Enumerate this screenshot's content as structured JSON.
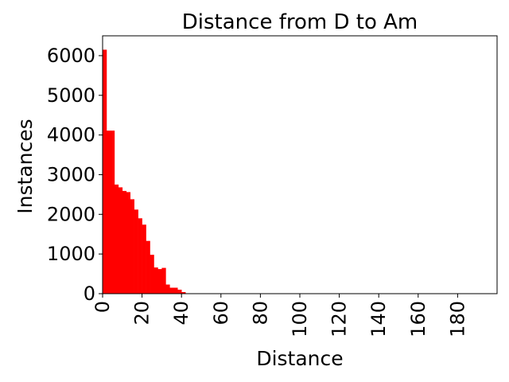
{
  "chart_data": {
    "type": "bar",
    "title": "Distance from D to Am",
    "xlabel": "Distance",
    "ylabel": "Instances",
    "xlim": [
      0,
      200
    ],
    "ylim": [
      0,
      6500
    ],
    "bar_color": "#ff0000",
    "grid": false,
    "x_ticks": [
      0,
      20,
      40,
      60,
      80,
      100,
      120,
      140,
      160,
      180
    ],
    "y_ticks": [
      0,
      1000,
      2000,
      3000,
      4000,
      5000,
      6000
    ],
    "bins": [
      {
        "x0": 0,
        "x1": 2,
        "value": 6150
      },
      {
        "x0": 2,
        "x1": 4,
        "value": 4110
      },
      {
        "x0": 4,
        "x1": 6,
        "value": 4110
      },
      {
        "x0": 6,
        "x1": 8,
        "value": 2750
      },
      {
        "x0": 8,
        "x1": 10,
        "value": 2680
      },
      {
        "x0": 10,
        "x1": 12,
        "value": 2590
      },
      {
        "x0": 12,
        "x1": 14,
        "value": 2560
      },
      {
        "x0": 14,
        "x1": 16,
        "value": 2380
      },
      {
        "x0": 16,
        "x1": 18,
        "value": 2120
      },
      {
        "x0": 18,
        "x1": 20,
        "value": 1900
      },
      {
        "x0": 20,
        "x1": 22,
        "value": 1740
      },
      {
        "x0": 22,
        "x1": 24,
        "value": 1330
      },
      {
        "x0": 24,
        "x1": 26,
        "value": 980
      },
      {
        "x0": 26,
        "x1": 28,
        "value": 660
      },
      {
        "x0": 28,
        "x1": 30,
        "value": 620
      },
      {
        "x0": 30,
        "x1": 32,
        "value": 650
      },
      {
        "x0": 32,
        "x1": 34,
        "value": 230
      },
      {
        "x0": 34,
        "x1": 36,
        "value": 150
      },
      {
        "x0": 36,
        "x1": 38,
        "value": 150
      },
      {
        "x0": 38,
        "x1": 40,
        "value": 100
      },
      {
        "x0": 40,
        "x1": 42,
        "value": 40
      },
      {
        "x0": 42,
        "x1": 44,
        "value": 10
      }
    ]
  }
}
